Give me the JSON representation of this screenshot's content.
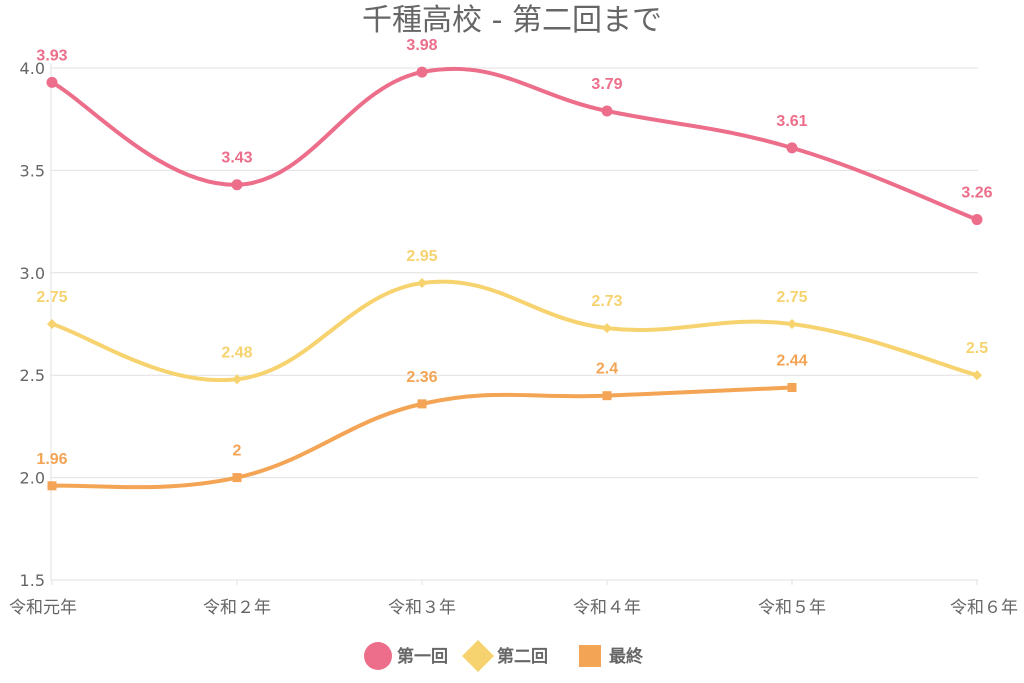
{
  "colors": {
    "series1": "#ec6e8a",
    "series2": "#f7d36f",
    "series3": "#f3a454",
    "grid": "#e1e1e1",
    "text": "#666666"
  },
  "chart_data": {
    "type": "line",
    "title": "千種高校 - 第二回まで",
    "xlabel": "",
    "ylabel": "",
    "categories": [
      "令和元年",
      "令和２年",
      "令和３年",
      "令和４年",
      "令和５年",
      "令和６年"
    ],
    "ylim": [
      1.5,
      4.0
    ],
    "yticks": [
      "1.5",
      "2.0",
      "2.5",
      "3.0",
      "3.5",
      "4.0"
    ],
    "grid": true,
    "legend_position": "bottom",
    "series": [
      {
        "name": "第一回",
        "marker": "circle",
        "color": "#ec6e8a",
        "values": [
          3.93,
          3.43,
          3.98,
          3.79,
          3.61,
          3.26
        ],
        "labels": [
          "3.93",
          "3.43",
          "3.98",
          "3.79",
          "3.61",
          "3.26"
        ]
      },
      {
        "name": "第二回",
        "marker": "diamond",
        "color": "#f7d36f",
        "values": [
          2.75,
          2.48,
          2.95,
          2.73,
          2.75,
          2.5
        ],
        "labels": [
          "2.75",
          "2.48",
          "2.95",
          "2.73",
          "2.75",
          "2.5"
        ]
      },
      {
        "name": "最終",
        "marker": "square",
        "color": "#f3a454",
        "values": [
          1.96,
          2.0,
          2.36,
          2.4,
          2.44,
          null
        ],
        "labels": [
          "1.96",
          "2",
          "2.36",
          "2.4",
          "2.44",
          null
        ]
      }
    ]
  }
}
